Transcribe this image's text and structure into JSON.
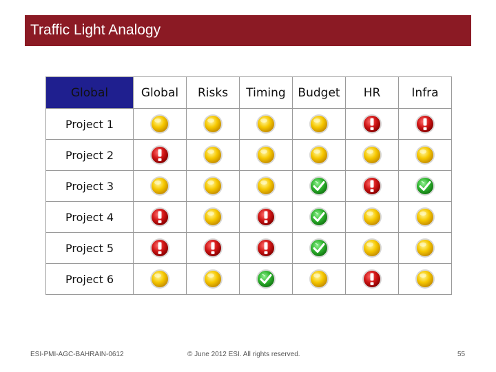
{
  "title": "Traffic Light Analogy",
  "table": {
    "corner": "Global",
    "columns": [
      "Global",
      "Risks",
      "Timing",
      "Budget",
      "HR",
      "Infra"
    ],
    "rows": [
      {
        "label": "Project 1",
        "status": [
          "yellow",
          "yellow",
          "yellow",
          "yellow",
          "red",
          "red"
        ]
      },
      {
        "label": "Project 2",
        "status": [
          "red",
          "yellow",
          "yellow",
          "yellow",
          "yellow",
          "yellow"
        ]
      },
      {
        "label": "Project 3",
        "status": [
          "yellow",
          "yellow",
          "yellow",
          "green",
          "red",
          "green"
        ]
      },
      {
        "label": "Project 4",
        "status": [
          "red",
          "yellow",
          "red",
          "green",
          "yellow",
          "yellow"
        ]
      },
      {
        "label": "Project 5",
        "status": [
          "red",
          "red",
          "red",
          "green",
          "yellow",
          "yellow"
        ]
      },
      {
        "label": "Project 6",
        "status": [
          "yellow",
          "yellow",
          "green",
          "yellow",
          "red",
          "yellow"
        ]
      }
    ]
  },
  "icons": {
    "yellow": "yellow-circle-icon",
    "red": "red-exclamation-icon",
    "green": "green-checkmark-icon"
  },
  "colors": {
    "title_bar": "#8b1a24",
    "corner_cell": "#1f1f8f"
  },
  "footer": {
    "left": "ESI-PMI-AGC-BAHRAIN-0612",
    "center": "© June 2012 ESI. All rights reserved.",
    "page": "55"
  }
}
